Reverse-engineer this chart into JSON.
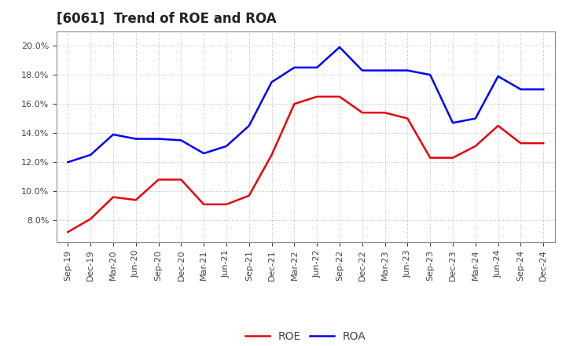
{
  "title": "[6061]  Trend of ROE and ROA",
  "labels": [
    "Sep-19",
    "Dec-19",
    "Mar-20",
    "Jun-20",
    "Sep-20",
    "Dec-20",
    "Mar-21",
    "Jun-21",
    "Sep-21",
    "Dec-21",
    "Mar-22",
    "Jun-22",
    "Sep-22",
    "Dec-22",
    "Mar-23",
    "Jun-23",
    "Sep-23",
    "Dec-23",
    "Mar-24",
    "Jun-24",
    "Sep-24",
    "Dec-24"
  ],
  "ROE": [
    7.2,
    8.1,
    9.6,
    9.4,
    10.8,
    10.8,
    9.1,
    9.1,
    9.7,
    12.5,
    16.0,
    16.5,
    16.5,
    15.4,
    15.4,
    15.0,
    12.3,
    12.3,
    13.1,
    14.5,
    13.3,
    13.3
  ],
  "ROA": [
    12.0,
    12.5,
    13.9,
    13.6,
    13.6,
    13.5,
    12.6,
    13.1,
    14.5,
    17.5,
    18.5,
    18.5,
    19.9,
    18.3,
    18.3,
    18.3,
    18.0,
    14.7,
    15.0,
    17.9,
    17.0,
    17.0
  ],
  "ROE_color": "#e8000d",
  "ROA_color": "#0000ff",
  "bg_color": "#ffffff",
  "plot_bg_color": "#ffffff",
  "grid_color": "#aaaaaa",
  "spine_color": "#888888",
  "text_color": "#444444",
  "ylim": [
    6.5,
    21.0
  ],
  "yticks": [
    8.0,
    10.0,
    12.0,
    14.0,
    16.0,
    18.0,
    20.0
  ],
  "title_fontsize": 12,
  "legend_fontsize": 10,
  "tick_fontsize": 8,
  "linewidth": 1.8
}
